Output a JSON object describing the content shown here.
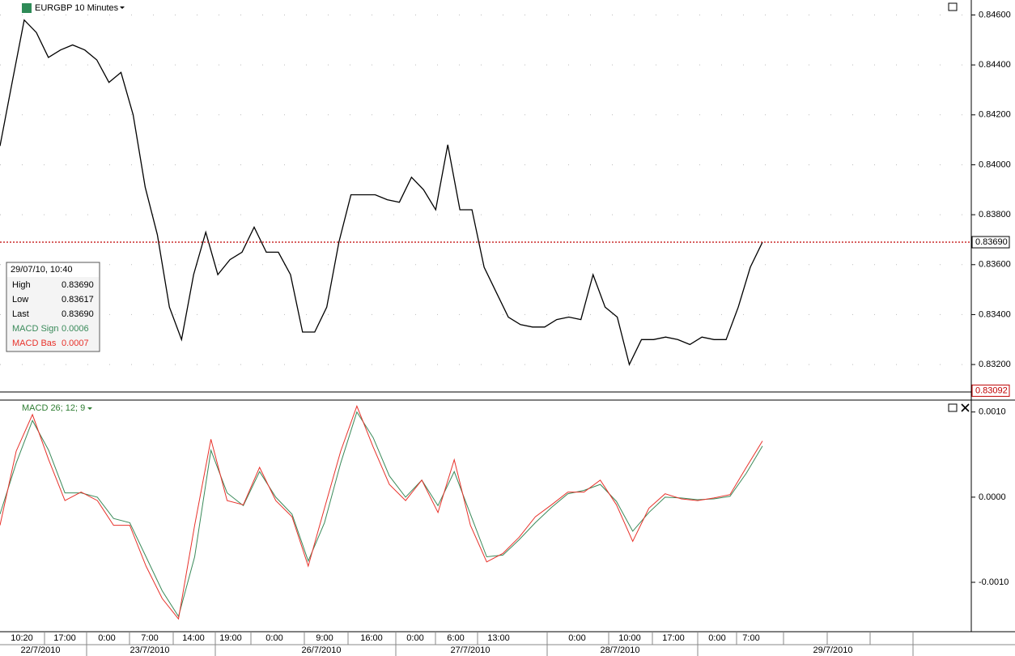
{
  "chart_data": [
    {
      "type": "line",
      "title": "EURGBP 10 Minutes",
      "color": "#000000",
      "values": [
        0.84075,
        0.8433,
        0.8458,
        0.8453,
        0.8443,
        0.8446,
        0.8448,
        0.8446,
        0.8442,
        0.8433,
        0.8437,
        0.842,
        0.8391,
        0.8372,
        0.8343,
        0.833,
        0.8356,
        0.8373,
        0.8356,
        0.8362,
        0.8365,
        0.8375,
        0.8365,
        0.8365,
        0.8356,
        0.8333,
        0.8333,
        0.8343,
        0.8369,
        0.8388,
        0.8388,
        0.8388,
        0.8386,
        0.8385,
        0.8395,
        0.839,
        0.8382,
        0.8408,
        0.8382,
        0.8382,
        0.8359,
        0.8349,
        0.8339,
        0.8336,
        0.8335,
        0.8335,
        0.8338,
        0.8339,
        0.8338,
        0.8356,
        0.8343,
        0.8339,
        0.832,
        0.833,
        0.833,
        0.8331,
        0.833,
        0.8328,
        0.8331,
        0.833,
        0.833,
        0.8343,
        0.8359,
        0.8369
      ],
      "ylim": [
        0.8309,
        0.8466
      ],
      "yticks": [
        {
          "value": 0.832,
          "label": "0.83200"
        },
        {
          "value": 0.834,
          "label": "0.83400"
        },
        {
          "value": 0.836,
          "label": "0.83600"
        },
        {
          "value": 0.838,
          "label": "0.83800"
        },
        {
          "value": 0.84,
          "label": "0.84000"
        },
        {
          "value": 0.842,
          "label": "0.84200"
        },
        {
          "value": 0.844,
          "label": "0.84400"
        },
        {
          "value": 0.846,
          "label": "0.84600"
        }
      ],
      "last_price": {
        "value": 0.8369,
        "label": "0.83690"
      },
      "low_marker": {
        "value": 0.83092,
        "label": "0.83092"
      },
      "grid": true
    },
    {
      "type": "line",
      "title": "MACD 26; 12; 9",
      "ylim": [
        -0.00158,
        0.00114
      ],
      "yticks": [
        {
          "value": -0.001,
          "label": "-0.0010"
        },
        {
          "value": 0,
          "label": "0.0000"
        },
        {
          "value": 0.001,
          "label": "0.0010"
        }
      ],
      "series": [
        {
          "name": "MACD Sign",
          "color": "#3a8a5a",
          "values": [
            -0.0002,
            0.0004,
            0.0009,
            0.00055,
            5e-05,
            5e-05,
            0,
            -0.00025,
            -0.0003,
            -0.0007,
            -0.0011,
            -0.0014,
            -0.0007,
            0.00055,
            5e-05,
            -0.0001,
            0.0003,
            0,
            -0.0002,
            -0.00075,
            -0.0003,
            0.0004,
            0.001,
            0.0007,
            0.00025,
            0,
            0.0002,
            -0.0001,
            0.0003,
            -0.0002,
            -0.0007,
            -0.00068,
            -0.0005,
            -0.0003,
            -0.00012,
            4e-05,
            8e-05,
            0.00015,
            -5e-05,
            -0.0004,
            -0.00018,
            0,
            -1e-05,
            -3e-05,
            -2e-05,
            1e-05,
            0.00028,
            0.0006
          ]
        },
        {
          "name": "MACD Bas",
          "color": "#e8312a",
          "values": [
            -0.00033,
            0.00054,
            0.00097,
            0.00044,
            -4e-05,
            6e-05,
            -4e-05,
            -0.00033,
            -0.00033,
            -0.00081,
            -0.00119,
            -0.00143,
            -0.00033,
            0.00068,
            -4e-05,
            -9e-05,
            0.00035,
            -4e-05,
            -0.00023,
            -0.00081,
            -0.00013,
            0.00054,
            0.00107,
            0.00059,
            0.00015,
            -4e-05,
            0.0002,
            -0.00018,
            0.00044,
            -0.00033,
            -0.00076,
            -0.00066,
            -0.00047,
            -0.00023,
            -9e-05,
            6e-05,
            6e-05,
            0.0002,
            -9e-05,
            -0.00052,
            -0.00013,
            4e-05,
            -2e-05,
            -4e-05,
            -1e-05,
            3e-05,
            0.00035,
            0.00066
          ]
        }
      ],
      "grid": false
    }
  ],
  "time_axis": {
    "times": [
      "10:20",
      "17:00",
      "0:00",
      "7:00",
      "14:00",
      "19:00",
      "0:00",
      "9:00",
      "16:00",
      "0:00",
      "6:00",
      "13:00",
      "0:00",
      "10:00",
      "17:00",
      "0:00",
      "7:00"
    ],
    "dates": [
      "22/7/2010",
      "23/7/2010",
      "26/7/2010",
      "27/7/2010",
      "28/7/2010",
      "29/7/2010"
    ]
  },
  "info_box": {
    "datetime": "29/07/10, 10:40",
    "rows": [
      [
        "High",
        "0.83690"
      ],
      [
        "Low",
        "0.83617"
      ],
      [
        "Last",
        "0.83690"
      ]
    ],
    "macd_values": [
      "0.0006",
      "0.0007"
    ]
  }
}
